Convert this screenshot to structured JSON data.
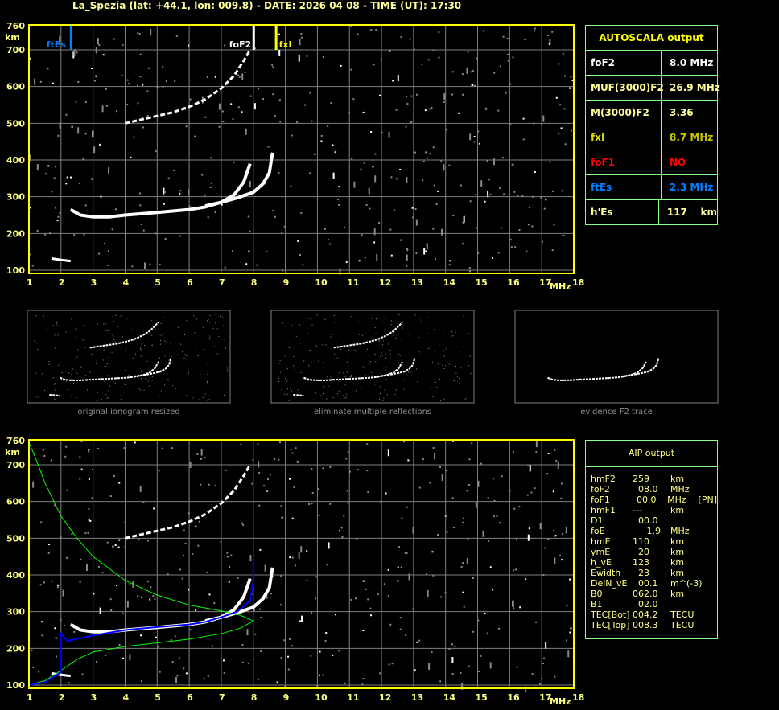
{
  "header": {
    "title": "La_Spezia (lat: +44.1, lon: 009.8) - DATE: 2026 04 08 - TIME (UT): 17:30"
  },
  "colors": {
    "axis": "#ffff00",
    "grid": "#808080",
    "panel_border": "#80ff80",
    "foF2": "#ffffff",
    "fxI": "#ffff00",
    "ftEs": "#0080ff",
    "foF1": "#ff0000",
    "profile": "#00ff00",
    "aip_trace": "#0000ff"
  },
  "autoscala": {
    "title": "AUTOSCALA output",
    "rows": [
      {
        "label": "foF2",
        "value": "8.0 MHz",
        "label_color": "#ffffff",
        "value_color": "#ffffff"
      },
      {
        "label": "MUF(3000)F2",
        "value": "26.9 MHz",
        "label_color": "#ffff99",
        "value_color": "#ffff99"
      },
      {
        "label": "M(3000)F2",
        "value": "3.36",
        "label_color": "#ffff99",
        "value_color": "#ffff99"
      },
      {
        "label": "fxI",
        "value": "8.7 MHz",
        "label_color": "#e0e000",
        "value_color": "#c8c800"
      },
      {
        "label": "foF1",
        "value": "NO",
        "label_color": "#ff0000",
        "value_color": "#ff0000"
      },
      {
        "label": "ftEs",
        "value": "2.3 MHz",
        "label_color": "#0080ff",
        "value_color": "#0080ff"
      },
      {
        "label": "h'Es",
        "value": "117    km",
        "label_color": "#ffff99",
        "value_color": "#ffff99"
      }
    ]
  },
  "aip": {
    "title": "AIP output",
    "rows": [
      [
        "hmF2",
        "259",
        "km",
        ""
      ],
      [
        "foF2",
        "  08.0",
        "MHz",
        ""
      ],
      [
        "foF1",
        "  00.0",
        "MHz",
        "[PN]"
      ],
      [
        "hmF1",
        "---",
        "km",
        ""
      ],
      [
        "D1",
        "  00.0",
        "",
        ""
      ],
      [
        "foE",
        "     1.9",
        "MHz",
        ""
      ],
      [
        "hmE",
        "110",
        "km",
        ""
      ],
      [
        "ymE",
        "  20",
        "km",
        ""
      ],
      [
        "h_vE",
        "123",
        "km",
        ""
      ],
      [
        "Ewidth",
        "  23",
        "km",
        ""
      ],
      [
        "DelN_vE",
        "  00.1",
        "m^(-3)",
        ""
      ],
      [
        "B0",
        "062.0",
        "km",
        ""
      ],
      [
        "B1",
        "  02.0",
        "",
        ""
      ],
      [
        "TEC[Bot]",
        "004.2",
        "TECU",
        ""
      ],
      [
        "TEC[Top]",
        "008.3",
        "TECU",
        ""
      ]
    ]
  },
  "thumbnails": {
    "captions": [
      "original ionogram resized",
      "eliminate multiple reflections",
      "evidence F2 trace"
    ]
  },
  "chart_data": [
    {
      "type": "scatter",
      "title": "",
      "xlabel": "MHz",
      "ylabel": "km",
      "xlim": [
        1,
        18
      ],
      "ylim": [
        100,
        760
      ],
      "xticks": [
        "1",
        "2",
        "3",
        "4",
        "5",
        "6",
        "7",
        "8",
        "9",
        "10",
        "11",
        "12",
        "13",
        "14",
        "15",
        "16",
        "17",
        "18"
      ],
      "yticks": [
        "760",
        "700",
        "600",
        "500",
        "400",
        "300",
        "200",
        "100"
      ],
      "grid": true,
      "markers": [
        {
          "name": "ftEs",
          "freq": 2.3,
          "color": "#0080ff"
        },
        {
          "name": "foF2",
          "freq": 8.0,
          "color": "#ffffff"
        },
        {
          "name": "fxI",
          "freq": 8.7,
          "color": "#ffff00"
        }
      ],
      "traces": [
        {
          "points": [
            [
              2.3,
              265
            ],
            [
              2.6,
              250
            ],
            [
              3,
              245
            ],
            [
              3.5,
              245
            ],
            [
              4,
              250
            ],
            [
              5,
              257
            ],
            [
              6,
              265
            ],
            [
              6.5,
              272
            ],
            [
              7,
              285
            ],
            [
              7.4,
              305
            ],
            [
              7.7,
              340
            ],
            [
              7.9,
              390
            ]
          ]
        },
        {
          "points": [
            [
              6.5,
              275
            ],
            [
              7,
              285
            ],
            [
              7.5,
              297
            ],
            [
              8,
              312
            ],
            [
              8.3,
              335
            ],
            [
              8.5,
              365
            ],
            [
              8.6,
              420
            ]
          ]
        },
        {
          "points": [
            [
              4,
              500
            ],
            [
              4.5,
              510
            ],
            [
              5,
              520
            ],
            [
              5.5,
              530
            ],
            [
              6,
              545
            ],
            [
              6.5,
              565
            ],
            [
              7,
              595
            ],
            [
              7.4,
              630
            ],
            [
              7.7,
              670
            ],
            [
              7.9,
              700
            ]
          ]
        },
        {
          "points": [
            [
              1.7,
              132
            ],
            [
              2.0,
              128
            ],
            [
              2.3,
              125
            ]
          ]
        }
      ]
    },
    {
      "type": "line",
      "title": "",
      "xlabel": "MHz",
      "ylabel": "km",
      "xlim": [
        1,
        18
      ],
      "ylim": [
        100,
        760
      ],
      "xticks": [
        "1",
        "2",
        "3",
        "4",
        "5",
        "6",
        "7",
        "8",
        "9",
        "10",
        "11",
        "12",
        "13",
        "14",
        "15",
        "16",
        "17",
        "18"
      ],
      "yticks": [
        "760",
        "700",
        "600",
        "500",
        "400",
        "300",
        "200",
        "100"
      ],
      "grid": true,
      "traces": [
        {
          "points": [
            [
              2.3,
              265
            ],
            [
              2.6,
              250
            ],
            [
              3,
              245
            ],
            [
              3.5,
              245
            ],
            [
              4,
              250
            ],
            [
              5,
              257
            ],
            [
              6,
              265
            ],
            [
              6.5,
              272
            ],
            [
              7,
              285
            ],
            [
              7.4,
              305
            ],
            [
              7.7,
              340
            ],
            [
              7.9,
              390
            ]
          ]
        },
        {
          "points": [
            [
              6.5,
              275
            ],
            [
              7,
              285
            ],
            [
              7.5,
              297
            ],
            [
              8,
              312
            ],
            [
              8.3,
              335
            ],
            [
              8.5,
              365
            ],
            [
              8.6,
              420
            ]
          ]
        },
        {
          "points": [
            [
              4,
              500
            ],
            [
              4.5,
              510
            ],
            [
              5,
              520
            ],
            [
              5.5,
              530
            ],
            [
              6,
              545
            ],
            [
              6.5,
              565
            ],
            [
              7,
              595
            ],
            [
              7.4,
              630
            ],
            [
              7.7,
              670
            ],
            [
              7.9,
              700
            ]
          ]
        },
        {
          "points": [
            [
              1.7,
              132
            ],
            [
              2.0,
              128
            ],
            [
              2.3,
              125
            ]
          ]
        }
      ],
      "profile": [
        [
          1,
          100
        ],
        [
          1.5,
          112
        ],
        [
          2,
          140
        ],
        [
          2.5,
          170
        ],
        [
          3,
          190
        ],
        [
          4,
          205
        ],
        [
          5,
          215
        ],
        [
          6,
          225
        ],
        [
          7,
          240
        ],
        [
          7.6,
          255
        ],
        [
          8,
          275
        ],
        [
          7.6,
          290
        ],
        [
          7,
          302
        ],
        [
          6,
          318
        ],
        [
          5,
          345
        ],
        [
          4,
          385
        ],
        [
          3,
          450
        ],
        [
          2.5,
          500
        ],
        [
          2,
          560
        ],
        [
          1.5,
          650
        ],
        [
          1.2,
          720
        ],
        [
          1,
          760
        ]
      ],
      "aip_trace": [
        [
          1,
          100
        ],
        [
          1.5,
          108
        ],
        [
          2,
          135
        ],
        [
          2,
          240
        ],
        [
          2.2,
          220
        ],
        [
          2.6,
          228
        ],
        [
          3,
          235
        ],
        [
          4,
          250
        ],
        [
          5,
          258
        ],
        [
          6,
          265
        ],
        [
          6.5,
          272
        ],
        [
          7,
          285
        ],
        [
          7.5,
          300
        ],
        [
          7.9,
          330
        ],
        [
          8,
          380
        ],
        [
          8,
          440
        ]
      ]
    }
  ]
}
